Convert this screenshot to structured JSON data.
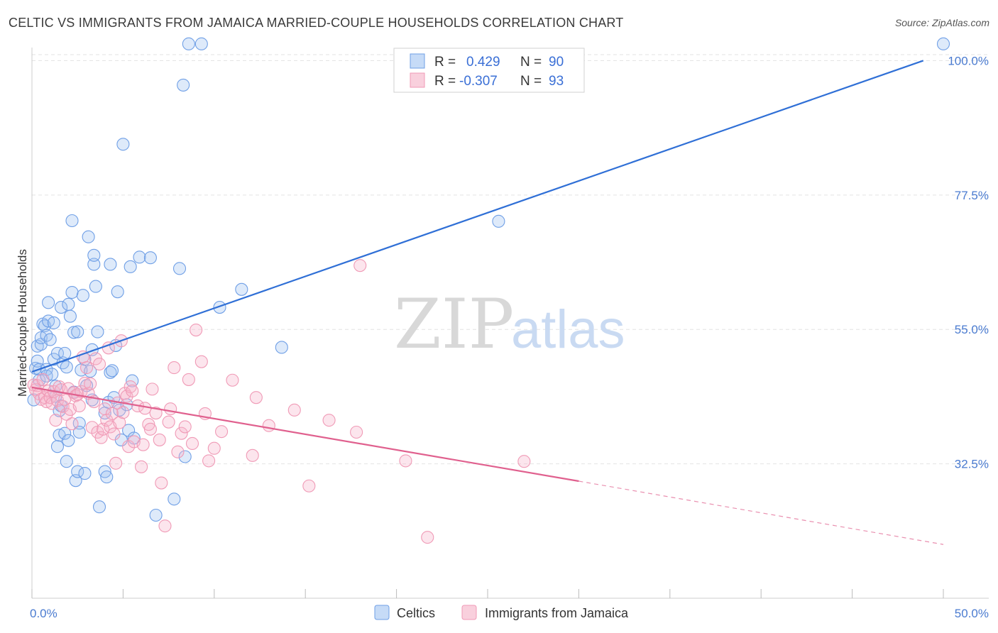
{
  "title": "CELTIC VS IMMIGRANTS FROM JAMAICA MARRIED-COUPLE HOUSEHOLDS CORRELATION CHART",
  "source": "Source: ZipAtlas.com",
  "colors": {
    "blue": "#6f9fe6",
    "blue_line": "#2f6fd6",
    "pink": "#f09ab6",
    "pink_line": "#e0608e",
    "grid": "#e3e3e3",
    "axis_text": "#4a7bd0"
  },
  "chart_data": {
    "type": "scatter",
    "title": "CELTIC VS IMMIGRANTS FROM JAMAICA MARRIED-COUPLE HOUSEHOLDS CORRELATION CHART",
    "xlabel": "",
    "ylabel": "Married-couple Households",
    "xlim": [
      0,
      50
    ],
    "ylim": [
      10,
      101
    ],
    "x_tick_labels": [
      "0.0%",
      "50.0%"
    ],
    "y_ticks": [
      32.5,
      55.0,
      77.5,
      100.0
    ],
    "y_tick_labels": [
      "32.5%",
      "55.0%",
      "77.5%",
      "100.0%"
    ],
    "watermark": {
      "part1": "ZIP",
      "part2": "atlas"
    },
    "legend": [
      {
        "r_label": "R =",
        "r_value": "0.429",
        "n_label": "N =",
        "n_value": "90"
      },
      {
        "r_label": "R =",
        "r_value": "-0.307",
        "n_label": "N =",
        "n_value": "93"
      }
    ],
    "series": [
      {
        "name": "Celtics",
        "trend": {
          "x": [
            0,
            48.9
          ],
          "y": [
            47.9,
            100.0
          ],
          "dashed_to": null
        },
        "points": [
          [
            0.1,
            43.2
          ],
          [
            0.2,
            48.5
          ],
          [
            0.3,
            49.7
          ],
          [
            0.3,
            52.2
          ],
          [
            0.4,
            48.3
          ],
          [
            0.4,
            46.5
          ],
          [
            0.5,
            52.5
          ],
          [
            0.5,
            53.6
          ],
          [
            0.6,
            55.9
          ],
          [
            0.7,
            55.6
          ],
          [
            0.8,
            54.0
          ],
          [
            0.8,
            48.3
          ],
          [
            0.8,
            47.2
          ],
          [
            0.9,
            56.4
          ],
          [
            0.9,
            59.5
          ],
          [
            1.0,
            53.3
          ],
          [
            1.1,
            47.5
          ],
          [
            1.2,
            56.1
          ],
          [
            1.2,
            50.0
          ],
          [
            1.3,
            45.5
          ],
          [
            1.3,
            43.8
          ],
          [
            1.4,
            35.4
          ],
          [
            1.4,
            51.0
          ],
          [
            1.5,
            41.4
          ],
          [
            1.5,
            37.3
          ],
          [
            1.6,
            58.7
          ],
          [
            1.6,
            42.2
          ],
          [
            1.7,
            49.4
          ],
          [
            1.8,
            51.0
          ],
          [
            1.8,
            37.6
          ],
          [
            1.9,
            32.9
          ],
          [
            1.9,
            48.7
          ],
          [
            2.0,
            36.4
          ],
          [
            2.0,
            59.2
          ],
          [
            2.1,
            57.2
          ],
          [
            2.2,
            61.2
          ],
          [
            2.2,
            73.2
          ],
          [
            2.3,
            54.5
          ],
          [
            2.3,
            44.5
          ],
          [
            2.4,
            29.7
          ],
          [
            2.5,
            54.6
          ],
          [
            2.5,
            31.2
          ],
          [
            2.6,
            39.3
          ],
          [
            2.6,
            37.8
          ],
          [
            2.7,
            48.2
          ],
          [
            2.8,
            60.7
          ],
          [
            2.9,
            50.0
          ],
          [
            2.9,
            30.9
          ],
          [
            3.0,
            45.6
          ],
          [
            3.1,
            70.5
          ],
          [
            3.2,
            48.0
          ],
          [
            3.3,
            51.6
          ],
          [
            3.3,
            43.2
          ],
          [
            3.4,
            65.9
          ],
          [
            3.4,
            67.4
          ],
          [
            3.5,
            62.2
          ],
          [
            3.6,
            54.6
          ],
          [
            3.7,
            25.3
          ],
          [
            4.0,
            41.0
          ],
          [
            4.0,
            31.2
          ],
          [
            4.1,
            30.3
          ],
          [
            4.2,
            42.8
          ],
          [
            4.3,
            47.8
          ],
          [
            4.3,
            65.9
          ],
          [
            4.4,
            48.1
          ],
          [
            4.5,
            43.6
          ],
          [
            4.6,
            52.3
          ],
          [
            4.7,
            61.3
          ],
          [
            4.8,
            41.5
          ],
          [
            4.9,
            36.5
          ],
          [
            5.0,
            86.0
          ],
          [
            5.2,
            42.4
          ],
          [
            5.3,
            38.1
          ],
          [
            5.4,
            65.5
          ],
          [
            5.5,
            46.4
          ],
          [
            5.6,
            36.8
          ],
          [
            5.9,
            67.1
          ],
          [
            6.5,
            67.0
          ],
          [
            6.8,
            23.9
          ],
          [
            7.8,
            26.6
          ],
          [
            8.1,
            65.2
          ],
          [
            8.3,
            95.9
          ],
          [
            8.4,
            33.7
          ],
          [
            8.6,
            102.8
          ],
          [
            9.3,
            102.8
          ],
          [
            10.3,
            58.7
          ],
          [
            11.5,
            61.7
          ],
          [
            13.7,
            52.0
          ],
          [
            25.6,
            73.1
          ],
          [
            50.0,
            102.8
          ]
        ]
      },
      {
        "name": "Immigrants from Jamaica",
        "trend": {
          "x": [
            0,
            30.0
          ],
          "y": [
            45.3,
            29.6
          ],
          "dashed_to": [
            50,
            19.0
          ]
        },
        "points": [
          [
            0.1,
            45.7
          ],
          [
            0.2,
            44.9
          ],
          [
            0.3,
            45.6
          ],
          [
            0.4,
            44.2
          ],
          [
            0.5,
            43.3
          ],
          [
            0.6,
            46.6
          ],
          [
            0.7,
            43.6
          ],
          [
            0.8,
            42.9
          ],
          [
            0.9,
            44.7
          ],
          [
            1.0,
            43.6
          ],
          [
            1.1,
            42.6
          ],
          [
            1.2,
            44.6
          ],
          [
            1.3,
            39.8
          ],
          [
            1.4,
            43.1
          ],
          [
            1.5,
            45.4
          ],
          [
            1.6,
            44.9
          ],
          [
            1.7,
            42.1
          ],
          [
            1.8,
            43.3
          ],
          [
            1.9,
            40.8
          ],
          [
            2.0,
            45.1
          ],
          [
            2.1,
            41.6
          ],
          [
            2.2,
            39.2
          ],
          [
            2.3,
            44.4
          ],
          [
            2.4,
            43.9
          ],
          [
            2.5,
            44.1
          ],
          [
            2.6,
            42.2
          ],
          [
            2.7,
            44.6
          ],
          [
            2.8,
            50.4
          ],
          [
            2.9,
            46.0
          ],
          [
            3.0,
            48.6
          ],
          [
            3.1,
            44.3
          ],
          [
            3.2,
            45.9
          ],
          [
            3.3,
            38.6
          ],
          [
            3.4,
            42.9
          ],
          [
            3.5,
            50.1
          ],
          [
            3.6,
            37.8
          ],
          [
            3.7,
            49.2
          ],
          [
            3.8,
            36.9
          ],
          [
            3.9,
            38.3
          ],
          [
            4.0,
            41.7
          ],
          [
            4.1,
            39.8
          ],
          [
            4.2,
            51.9
          ],
          [
            4.3,
            38.7
          ],
          [
            4.4,
            40.9
          ],
          [
            4.5,
            37.5
          ],
          [
            4.6,
            32.6
          ],
          [
            4.7,
            42.7
          ],
          [
            4.8,
            39.4
          ],
          [
            4.9,
            53.1
          ],
          [
            5.0,
            41.1
          ],
          [
            5.1,
            44.3
          ],
          [
            5.2,
            43.8
          ],
          [
            5.3,
            35.4
          ],
          [
            5.4,
            45.4
          ],
          [
            5.5,
            44.7
          ],
          [
            5.6,
            36.2
          ],
          [
            5.8,
            42.2
          ],
          [
            6.0,
            32.0
          ],
          [
            6.1,
            35.7
          ],
          [
            6.2,
            41.8
          ],
          [
            6.4,
            39.1
          ],
          [
            6.5,
            38.3
          ],
          [
            6.6,
            45.0
          ],
          [
            6.8,
            41.0
          ],
          [
            7.0,
            36.5
          ],
          [
            7.1,
            29.3
          ],
          [
            7.3,
            22.1
          ],
          [
            7.5,
            39.5
          ],
          [
            7.6,
            41.7
          ],
          [
            7.8,
            48.6
          ],
          [
            8.0,
            34.5
          ],
          [
            8.2,
            37.6
          ],
          [
            8.4,
            38.7
          ],
          [
            8.6,
            46.6
          ],
          [
            8.8,
            35.9
          ],
          [
            9.0,
            54.9
          ],
          [
            9.3,
            49.6
          ],
          [
            9.5,
            40.9
          ],
          [
            9.7,
            33.0
          ],
          [
            10.0,
            35.1
          ],
          [
            10.4,
            37.9
          ],
          [
            11.0,
            46.5
          ],
          [
            12.1,
            33.9
          ],
          [
            12.3,
            43.6
          ],
          [
            13.0,
            38.9
          ],
          [
            14.4,
            41.5
          ],
          [
            15.2,
            28.8
          ],
          [
            16.3,
            39.8
          ],
          [
            17.8,
            37.8
          ],
          [
            18.0,
            65.7
          ],
          [
            20.5,
            33.0
          ],
          [
            21.7,
            20.2
          ],
          [
            27.0,
            32.9
          ]
        ]
      }
    ]
  }
}
